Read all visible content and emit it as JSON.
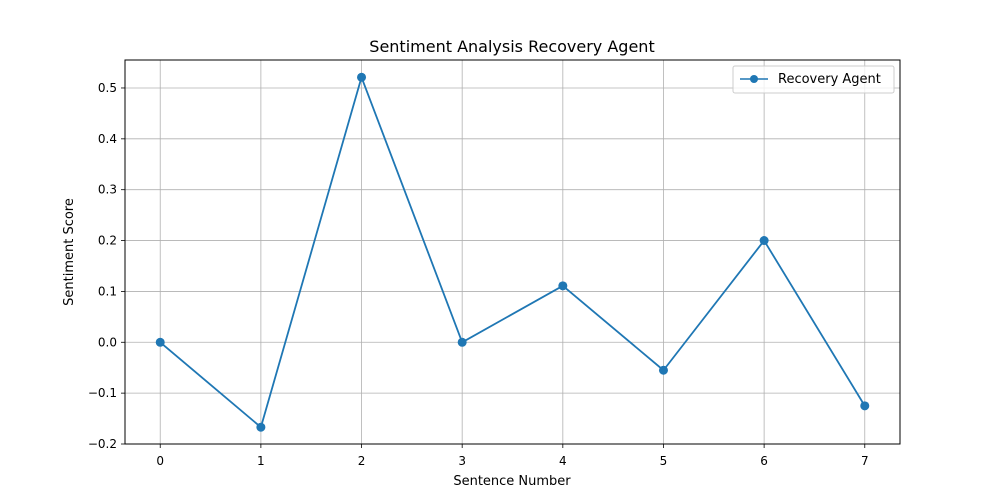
{
  "chart_data": {
    "type": "line",
    "title": "Sentiment Analysis Recovery Agent",
    "xlabel": "Sentence Number",
    "ylabel": "Sentiment Score",
    "x": [
      0,
      1,
      2,
      3,
      4,
      5,
      6,
      7
    ],
    "series": [
      {
        "name": "Recovery Agent",
        "values": [
          0.0,
          -0.167,
          0.521,
          0.0,
          0.111,
          -0.055,
          0.2,
          -0.125
        ],
        "color": "#1f77b4",
        "marker": "circle"
      }
    ],
    "xlim": [
      -0.35,
      7.35
    ],
    "ylim": [
      -0.2,
      0.555
    ],
    "xticks": [
      0,
      1,
      2,
      3,
      4,
      5,
      6,
      7
    ],
    "xtick_labels": [
      "0",
      "1",
      "2",
      "3",
      "4",
      "5",
      "6",
      "7"
    ],
    "yticks": [
      -0.2,
      -0.1,
      0.0,
      0.1,
      0.2,
      0.3,
      0.4,
      0.5
    ],
    "ytick_labels": [
      "−0.2",
      "−0.1",
      "0.0",
      "0.1",
      "0.2",
      "0.3",
      "0.4",
      "0.5"
    ],
    "grid": true,
    "legend_position": "top-right"
  }
}
